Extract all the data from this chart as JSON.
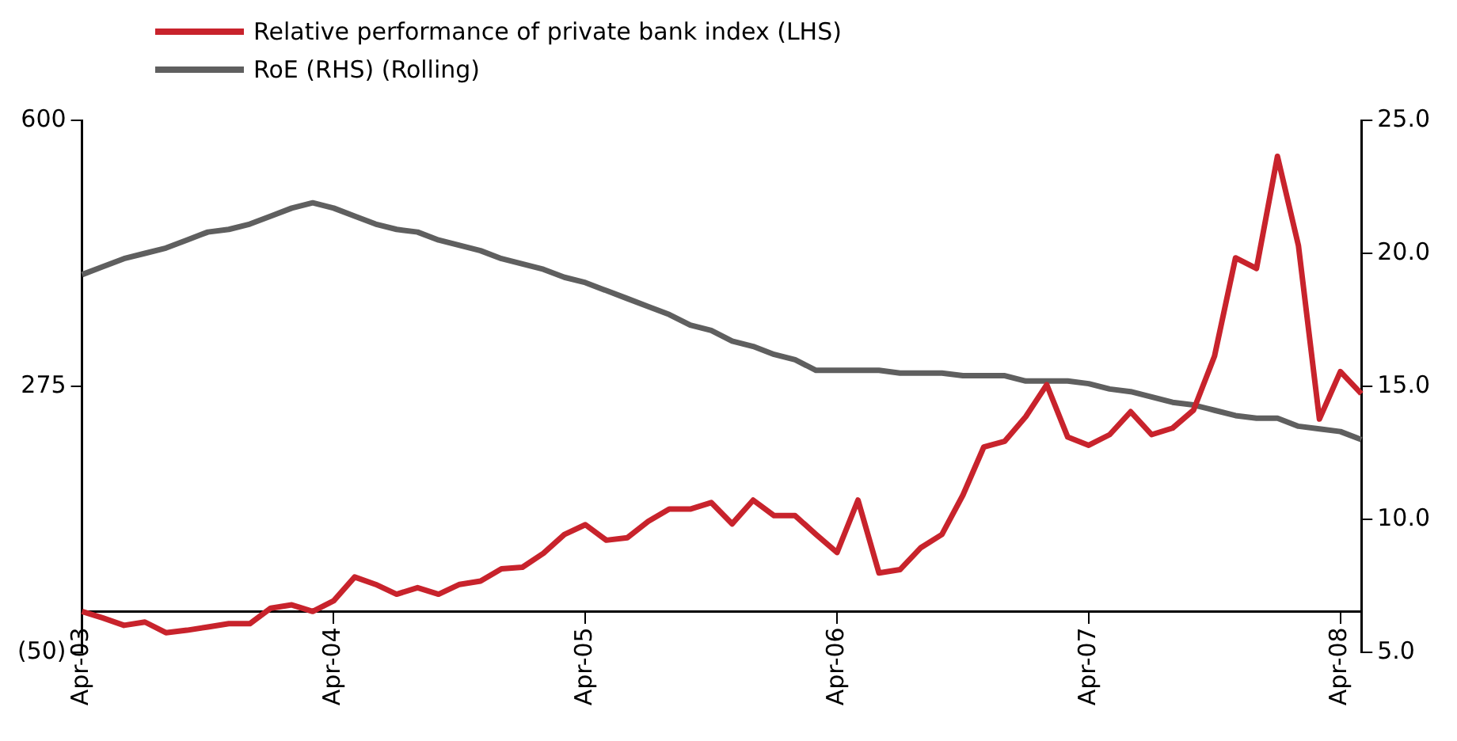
{
  "chart_data": {
    "type": "line",
    "categories": [
      "Apr-03",
      null,
      null,
      null,
      null,
      null,
      null,
      null,
      null,
      null,
      null,
      null,
      "Apr-04",
      null,
      null,
      null,
      null,
      null,
      null,
      null,
      null,
      null,
      null,
      null,
      "Apr-05",
      null,
      null,
      null,
      null,
      null,
      null,
      null,
      null,
      null,
      null,
      null,
      "Apr-06",
      null,
      null,
      null,
      null,
      null,
      null,
      null,
      null,
      null,
      null,
      null,
      "Apr-07",
      null,
      null,
      null,
      null,
      null,
      null,
      null,
      null,
      null,
      null,
      null,
      "Apr-08",
      null
    ],
    "series": [
      {
        "name": "Relative performance of private bank index (LHS)",
        "color": "#c8232c",
        "axis": "y",
        "values": [
          0,
          -8,
          -17,
          -13,
          -26,
          -23,
          -19,
          -15,
          -15,
          4,
          8,
          0,
          13,
          42,
          33,
          21,
          29,
          21,
          33,
          37,
          52,
          54,
          71,
          94,
          106,
          87,
          90,
          110,
          125,
          125,
          133,
          107,
          136,
          117,
          117,
          94,
          72,
          136,
          47,
          51,
          78,
          94,
          142,
          201,
          208,
          238,
          277,
          213,
          203,
          216,
          244,
          216,
          224,
          246,
          312,
          432,
          419,
          556,
          447,
          235,
          293,
          266
        ]
      },
      {
        "name": "RoE (RHS) (Rolling)",
        "color": "#5f5f5f",
        "axis": "y2",
        "values": [
          19.2,
          19.5,
          19.8,
          20.0,
          20.2,
          20.5,
          20.8,
          20.9,
          21.1,
          21.4,
          21.7,
          21.9,
          21.7,
          21.4,
          21.1,
          20.9,
          20.8,
          20.5,
          20.3,
          20.1,
          19.8,
          19.6,
          19.4,
          19.1,
          18.9,
          18.6,
          18.3,
          18.0,
          17.7,
          17.3,
          17.1,
          16.7,
          16.5,
          16.2,
          16.0,
          15.6,
          15.6,
          15.6,
          15.6,
          15.5,
          15.5,
          15.5,
          15.4,
          15.4,
          15.4,
          15.2,
          15.2,
          15.2,
          15.1,
          14.9,
          14.8,
          14.6,
          14.4,
          14.3,
          14.1,
          13.9,
          13.8,
          13.8,
          13.5,
          13.4,
          13.3,
          13.0
        ]
      }
    ],
    "ylim": [
      -50,
      600
    ],
    "yticks": [
      {
        "value": -50,
        "label": "(50)"
      },
      275,
      600
    ],
    "y2lim": [
      5,
      25
    ],
    "y2ticks": [
      {
        "value": 5,
        "label": "5.0"
      },
      {
        "value": 10,
        "label": "10.0"
      },
      {
        "value": 15,
        "label": "15.0"
      },
      {
        "value": 20,
        "label": "20.0"
      },
      {
        "value": 25,
        "label": "25.0"
      }
    ],
    "grid": false,
    "legend": "top left"
  }
}
